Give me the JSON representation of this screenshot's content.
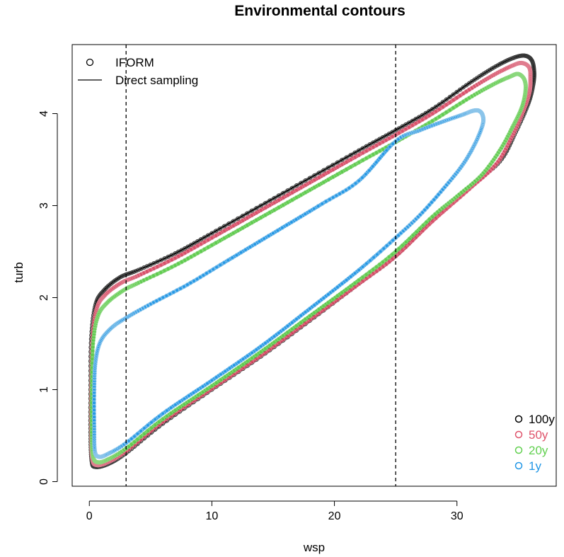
{
  "chart_data": {
    "type": "line",
    "title": "Environmental contours",
    "xlabel": "wsp",
    "ylabel": "turb",
    "xlim": [
      -1.4,
      38.1
    ],
    "ylim": [
      -0.05,
      4.75
    ],
    "x_ticks": [
      0,
      10,
      20,
      30
    ],
    "y_ticks": [
      0,
      1,
      2,
      3,
      4
    ],
    "x_tick_labels": [
      "0",
      "10",
      "20",
      "30"
    ],
    "y_tick_labels": [
      "0",
      "1",
      "2",
      "3",
      "4"
    ],
    "grid": false,
    "vertical_reference_lines": [
      3,
      25
    ],
    "method_legend": {
      "position": "top-left",
      "entries": [
        {
          "label": "IFORM",
          "symbol": "circle"
        },
        {
          "label": "Direct sampling",
          "symbol": "line"
        }
      ]
    },
    "return_period_legend": {
      "position": "bottom-right",
      "entries": [
        "100y",
        "50y",
        "20y",
        "1y"
      ]
    },
    "series": [
      {
        "name": "100y",
        "color": "#000000",
        "iform_color": "#3a3a3a",
        "direct_color": "#8c8c8c",
        "points": [
          [
            0.1,
            1.0
          ],
          [
            0.15,
            1.55
          ],
          [
            0.5,
            1.92
          ],
          [
            1.2,
            2.08
          ],
          [
            2.5,
            2.22
          ],
          [
            4.0,
            2.3
          ],
          [
            7.0,
            2.48
          ],
          [
            10.0,
            2.7
          ],
          [
            14.0,
            3.0
          ],
          [
            18.0,
            3.3
          ],
          [
            22.0,
            3.6
          ],
          [
            25.0,
            3.82
          ],
          [
            28.0,
            4.05
          ],
          [
            31.0,
            4.33
          ],
          [
            33.0,
            4.5
          ],
          [
            34.5,
            4.6
          ],
          [
            35.5,
            4.63
          ],
          [
            36.1,
            4.58
          ],
          [
            36.3,
            4.45
          ],
          [
            36.2,
            4.3
          ],
          [
            35.8,
            4.1
          ],
          [
            34.8,
            3.8
          ],
          [
            33.5,
            3.48
          ],
          [
            31.0,
            3.2
          ],
          [
            28.0,
            2.85
          ],
          [
            25.0,
            2.45
          ],
          [
            22.0,
            2.15
          ],
          [
            18.0,
            1.75
          ],
          [
            14.0,
            1.36
          ],
          [
            10.0,
            1.0
          ],
          [
            6.0,
            0.63
          ],
          [
            3.0,
            0.31
          ],
          [
            1.5,
            0.19
          ],
          [
            0.5,
            0.16
          ],
          [
            0.2,
            0.22
          ],
          [
            0.1,
            0.5
          ],
          [
            0.1,
            1.0
          ]
        ]
      },
      {
        "name": "50y",
        "color": "#df536b",
        "iform_color": "#e07f90",
        "direct_color": "#c93554",
        "points": [
          [
            0.15,
            1.0
          ],
          [
            0.25,
            1.55
          ],
          [
            0.6,
            1.88
          ],
          [
            1.3,
            2.03
          ],
          [
            2.6,
            2.16
          ],
          [
            4.0,
            2.24
          ],
          [
            7.0,
            2.43
          ],
          [
            10.0,
            2.65
          ],
          [
            14.0,
            2.95
          ],
          [
            18.0,
            3.25
          ],
          [
            22.0,
            3.55
          ],
          [
            25.0,
            3.77
          ],
          [
            28.0,
            4.0
          ],
          [
            31.0,
            4.26
          ],
          [
            33.0,
            4.42
          ],
          [
            34.5,
            4.52
          ],
          [
            35.3,
            4.55
          ],
          [
            35.9,
            4.5
          ],
          [
            36.0,
            4.38
          ],
          [
            35.9,
            4.22
          ],
          [
            35.4,
            4.02
          ],
          [
            34.5,
            3.75
          ],
          [
            33.2,
            3.45
          ],
          [
            31.0,
            3.18
          ],
          [
            28.0,
            2.83
          ],
          [
            25.0,
            2.45
          ],
          [
            22.0,
            2.15
          ],
          [
            18.0,
            1.76
          ],
          [
            14.0,
            1.37
          ],
          [
            10.0,
            1.01
          ],
          [
            6.0,
            0.65
          ],
          [
            3.0,
            0.33
          ],
          [
            1.5,
            0.21
          ],
          [
            0.6,
            0.18
          ],
          [
            0.25,
            0.24
          ],
          [
            0.15,
            0.5
          ],
          [
            0.15,
            1.0
          ]
        ]
      },
      {
        "name": "20y",
        "color": "#61d04f",
        "iform_color": "#8cd87e",
        "direct_color": "#4dbf3d",
        "points": [
          [
            0.2,
            1.0
          ],
          [
            0.3,
            1.5
          ],
          [
            0.7,
            1.8
          ],
          [
            1.5,
            1.95
          ],
          [
            2.8,
            2.08
          ],
          [
            4.0,
            2.16
          ],
          [
            7.0,
            2.35
          ],
          [
            10.0,
            2.57
          ],
          [
            14.0,
            2.87
          ],
          [
            18.0,
            3.17
          ],
          [
            22.0,
            3.47
          ],
          [
            25.0,
            3.69
          ],
          [
            28.0,
            3.92
          ],
          [
            31.0,
            4.17
          ],
          [
            33.0,
            4.32
          ],
          [
            34.3,
            4.4
          ],
          [
            35.0,
            4.43
          ],
          [
            35.5,
            4.37
          ],
          [
            35.6,
            4.25
          ],
          [
            35.3,
            4.07
          ],
          [
            34.6,
            3.87
          ],
          [
            33.5,
            3.6
          ],
          [
            32.0,
            3.33
          ],
          [
            30.0,
            3.1
          ],
          [
            28.0,
            2.88
          ],
          [
            25.0,
            2.5
          ],
          [
            22.0,
            2.19
          ],
          [
            18.0,
            1.8
          ],
          [
            14.0,
            1.41
          ],
          [
            10.0,
            1.04
          ],
          [
            6.0,
            0.68
          ],
          [
            3.0,
            0.36
          ],
          [
            1.5,
            0.24
          ],
          [
            0.7,
            0.21
          ],
          [
            0.3,
            0.27
          ],
          [
            0.2,
            0.5
          ],
          [
            0.2,
            1.0
          ]
        ]
      },
      {
        "name": "1y",
        "color": "#2297e6",
        "iform_color": "#8cc5ea",
        "direct_color": "#2297e6",
        "points": [
          [
            0.4,
            1.0
          ],
          [
            0.5,
            1.3
          ],
          [
            0.9,
            1.52
          ],
          [
            1.8,
            1.67
          ],
          [
            3.0,
            1.78
          ],
          [
            5.0,
            1.93
          ],
          [
            8.0,
            2.14
          ],
          [
            11.0,
            2.38
          ],
          [
            15.0,
            2.7
          ],
          [
            19.0,
            3.02
          ],
          [
            22.0,
            3.27
          ],
          [
            25.0,
            3.7
          ],
          [
            27.0,
            3.82
          ],
          [
            29.0,
            3.92
          ],
          [
            30.5,
            3.99
          ],
          [
            31.3,
            4.03
          ],
          [
            31.8,
            4.03
          ],
          [
            32.1,
            3.98
          ],
          [
            32.1,
            3.88
          ],
          [
            31.5,
            3.68
          ],
          [
            30.5,
            3.45
          ],
          [
            29.0,
            3.2
          ],
          [
            27.0,
            2.9
          ],
          [
            25.0,
            2.65
          ],
          [
            22.0,
            2.3
          ],
          [
            18.0,
            1.88
          ],
          [
            14.0,
            1.47
          ],
          [
            10.0,
            1.1
          ],
          [
            6.0,
            0.74
          ],
          [
            3.0,
            0.42
          ],
          [
            1.5,
            0.3
          ],
          [
            0.8,
            0.27
          ],
          [
            0.45,
            0.33
          ],
          [
            0.4,
            0.6
          ],
          [
            0.4,
            1.0
          ]
        ]
      }
    ]
  }
}
